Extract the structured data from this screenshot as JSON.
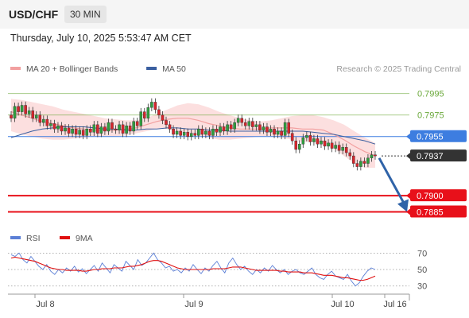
{
  "header": {
    "symbol": "USD/CHF",
    "timeframe": "30 MIN",
    "datetime": "Thursday, July 10, 2025 5:53:47 AM CET"
  },
  "colors": {
    "ma20": "#f2a0a0",
    "ma50": "#3a5fa0",
    "band_fill": "#fbd9d9",
    "green": "#6aa83a",
    "blue_line": "#3d7de0",
    "red": "#e8101a",
    "dark_label": "#333333",
    "candle_up": "#2e9e3e",
    "candle_down": "#d8242b",
    "arrow": "#2f63a8",
    "rsi": "#5b7fd6",
    "rsi_ma": "#e01010"
  },
  "chart_data": [
    {
      "type": "candlestick",
      "legend": [
        {
          "name": "MA 20 + Bollinger Bands",
          "color": "#f2a0a0"
        },
        {
          "name": "MA 50",
          "color": "#3a5fa0"
        }
      ],
      "watermark": "Research © 2025 Trading Central",
      "x_labels": [
        "Jul 8",
        "Jul 9",
        "Jul 10",
        "Jul 16"
      ],
      "ylim": [
        0.7875,
        0.8008
      ],
      "levels": [
        {
          "value": 0.7995,
          "label": "0.7995",
          "style": "resistance",
          "color": "#6aa83a"
        },
        {
          "value": 0.7975,
          "label": "0.7975",
          "style": "resistance",
          "color": "#6aa83a"
        },
        {
          "value": 0.7955,
          "label": "0.7955",
          "style": "pivot",
          "color": "#3d7de0"
        },
        {
          "value": 0.7937,
          "label": "0.7937",
          "style": "last",
          "color": "#333333"
        },
        {
          "value": 0.79,
          "label": "0.7900",
          "style": "support",
          "color": "#e8101a"
        },
        {
          "value": 0.7885,
          "label": "0.7885",
          "style": "support",
          "color": "#e8101a"
        }
      ],
      "candles_close": [
        0.7972,
        0.7983,
        0.7978,
        0.7984,
        0.7976,
        0.7979,
        0.7972,
        0.7975,
        0.7968,
        0.7971,
        0.7965,
        0.7967,
        0.7962,
        0.7965,
        0.796,
        0.7963,
        0.7958,
        0.7962,
        0.7957,
        0.7961,
        0.7956,
        0.7962,
        0.7959,
        0.7966,
        0.7958,
        0.7964,
        0.796,
        0.7968,
        0.7962,
        0.7961,
        0.7966,
        0.7958,
        0.7965,
        0.796,
        0.7969,
        0.7965,
        0.7978,
        0.7972,
        0.7982,
        0.7987,
        0.798,
        0.7975,
        0.797,
        0.7966,
        0.7962,
        0.7957,
        0.796,
        0.7956,
        0.7959,
        0.7955,
        0.7958,
        0.7956,
        0.7962,
        0.7957,
        0.796,
        0.7956,
        0.7962,
        0.7959,
        0.7964,
        0.796,
        0.7966,
        0.7962,
        0.7968,
        0.7972,
        0.7968,
        0.7965,
        0.7969,
        0.7964,
        0.7966,
        0.7961,
        0.7964,
        0.7959,
        0.7962,
        0.7957,
        0.796,
        0.7956,
        0.7968,
        0.7958,
        0.7951,
        0.7943,
        0.7948,
        0.7954,
        0.7956,
        0.795,
        0.7953,
        0.7948,
        0.7951,
        0.7946,
        0.7949,
        0.7944,
        0.7947,
        0.7942,
        0.7945,
        0.794,
        0.7937,
        0.793,
        0.7927,
        0.7932,
        0.793,
        0.7935,
        0.7938,
        0.7937
      ],
      "bb_upper": [
        0.799,
        0.7989,
        0.7987,
        0.7985,
        0.7983,
        0.798,
        0.7978,
        0.7976,
        0.7974,
        0.7972,
        0.7971,
        0.797,
        0.797,
        0.7972,
        0.7976,
        0.798,
        0.7984,
        0.7986,
        0.7985,
        0.7982,
        0.7978,
        0.7975,
        0.7972,
        0.797,
        0.7969,
        0.797,
        0.7972,
        0.7974,
        0.7975,
        0.7975,
        0.7973,
        0.797,
        0.7966,
        0.796,
        0.7954,
        0.7949
      ],
      "bb_lower": [
        0.796,
        0.7957,
        0.7955,
        0.7953,
        0.7952,
        0.7952,
        0.7953,
        0.7954,
        0.7955,
        0.7955,
        0.7955,
        0.7956,
        0.7958,
        0.796,
        0.7962,
        0.7962,
        0.796,
        0.7958,
        0.7956,
        0.7954,
        0.7952,
        0.7952,
        0.7953,
        0.7954,
        0.7955,
        0.7955,
        0.7954,
        0.7952,
        0.795,
        0.795,
        0.7949,
        0.7944,
        0.7937,
        0.793,
        0.7926,
        0.7926
      ],
      "ma20": [
        0.7978,
        0.7975,
        0.7972,
        0.7969,
        0.7967,
        0.7965,
        0.7963,
        0.7962,
        0.7961,
        0.7961,
        0.7961,
        0.7962,
        0.7963,
        0.7966,
        0.7969,
        0.7971,
        0.7972,
        0.7972,
        0.797,
        0.7967,
        0.7965,
        0.7963,
        0.7962,
        0.7962,
        0.7962,
        0.7963,
        0.7963,
        0.7963,
        0.7962,
        0.7962,
        0.7961,
        0.7957,
        0.7952,
        0.7946,
        0.7941,
        0.7937
      ],
      "ma50": [
        0.7954,
        0.7957,
        0.796,
        0.7962,
        0.7963,
        0.7964,
        0.7964,
        0.7964,
        0.7963,
        0.7962,
        0.7962,
        0.7961,
        0.7961,
        0.7962,
        0.7962,
        0.7963,
        0.7963,
        0.7962,
        0.7962,
        0.7961,
        0.7961,
        0.796,
        0.796,
        0.796,
        0.796,
        0.796,
        0.796,
        0.796,
        0.796,
        0.7959,
        0.7958,
        0.7957,
        0.7955,
        0.7953,
        0.7951,
        0.7948
      ],
      "forecast": {
        "from": 0.7935,
        "to": 0.7885
      }
    },
    {
      "type": "line",
      "legend": [
        {
          "name": "RSI",
          "color": "#5b7fd6"
        },
        {
          "name": "9MA",
          "color": "#e01010"
        }
      ],
      "y_ticks": [
        70,
        50,
        30
      ],
      "ylim": [
        22,
        80
      ],
      "rsi": [
        68,
        66,
        70,
        62,
        58,
        66,
        60,
        54,
        50,
        56,
        48,
        44,
        50,
        46,
        52,
        48,
        54,
        47,
        51,
        45,
        50,
        55,
        48,
        58,
        52,
        46,
        56,
        52,
        48,
        60,
        55,
        50,
        62,
        55,
        58,
        64,
        70,
        62,
        58,
        52,
        54,
        48,
        50,
        46,
        52,
        48,
        56,
        50,
        45,
        52,
        48,
        55,
        60,
        52,
        46,
        58,
        64,
        56,
        50,
        54,
        48,
        44,
        50,
        46,
        52,
        48,
        55,
        50,
        46,
        50,
        44,
        48,
        50,
        46,
        44,
        48,
        52,
        44,
        40,
        38,
        44,
        48,
        42,
        40,
        38,
        44,
        36,
        30,
        34,
        42,
        48,
        52,
        50
      ],
      "rsi_ma": [
        64,
        65,
        64,
        63,
        62,
        61,
        60,
        58,
        56,
        54,
        52,
        51,
        50,
        50,
        49,
        49,
        49,
        49,
        48,
        48,
        49,
        50,
        50,
        51,
        51,
        51,
        52,
        52,
        52,
        53,
        54,
        54,
        55,
        56,
        58,
        60,
        61,
        61,
        60,
        58,
        56,
        54,
        52,
        51,
        50,
        50,
        50,
        50,
        50,
        50,
        50,
        51,
        51,
        51,
        51,
        52,
        53,
        53,
        53,
        52,
        51,
        50,
        49,
        49,
        49,
        49,
        49,
        49,
        48,
        48,
        47,
        47,
        47,
        47,
        46,
        46,
        46,
        45,
        44,
        43,
        43,
        43,
        42,
        41,
        40,
        40,
        39,
        38,
        37,
        37,
        38,
        40,
        42
      ]
    }
  ]
}
